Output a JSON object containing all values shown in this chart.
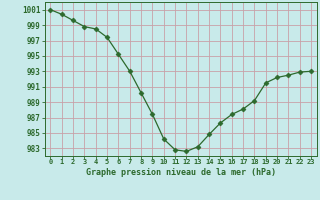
{
  "x": [
    0,
    1,
    2,
    3,
    4,
    5,
    6,
    7,
    8,
    9,
    10,
    11,
    12,
    13,
    14,
    15,
    16,
    17,
    18,
    19,
    20,
    21,
    22,
    23
  ],
  "y": [
    1001,
    1000.4,
    999.6,
    998.8,
    998.5,
    997.4,
    995.2,
    993.0,
    990.2,
    987.4,
    984.2,
    982.8,
    982.6,
    983.2,
    984.8,
    986.3,
    987.4,
    988.1,
    989.2,
    991.5,
    992.2,
    992.5,
    992.9,
    993.0
  ],
  "line_color": "#2d6a2d",
  "marker": "D",
  "marker_size": 2.5,
  "bg_color": "#c8eaea",
  "grid_color": "#c8a0a8",
  "title": "Graphe pression niveau de la mer (hPa)",
  "xlabel_ticks": [
    "0",
    "1",
    "2",
    "3",
    "4",
    "5",
    "6",
    "7",
    "8",
    "9",
    "10",
    "11",
    "12",
    "13",
    "14",
    "15",
    "16",
    "17",
    "18",
    "19",
    "20",
    "21",
    "22",
    "23"
  ],
  "yticks": [
    983,
    985,
    987,
    989,
    991,
    993,
    995,
    997,
    999,
    1001
  ],
  "ylim": [
    982,
    1002
  ],
  "xlim": [
    -0.5,
    23.5
  ]
}
